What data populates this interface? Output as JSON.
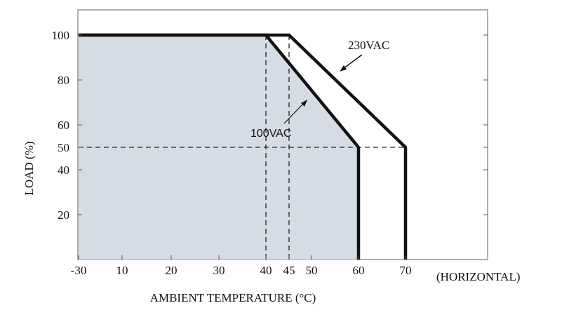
{
  "chart_data": {
    "type": "line",
    "title": "",
    "xlabel": "AMBIENT TEMPERATURE (°C)",
    "ylabel": "LOAD (%)",
    "xlim": [
      -30,
      88
    ],
    "ylim": [
      0,
      110
    ],
    "x_ticks": [
      -30,
      10,
      20,
      30,
      40,
      45,
      50,
      60,
      70
    ],
    "x_tick_labels": [
      "-30",
      "10",
      "20",
      "30",
      "40",
      "45",
      "50",
      "60",
      "70"
    ],
    "y_ticks": [
      20,
      40,
      50,
      60,
      80,
      100
    ],
    "y_tick_labels": [
      "20",
      "40",
      "50",
      "60",
      "80",
      "100"
    ],
    "axis_note": "(HORIZONTAL)",
    "grid": false,
    "series": [
      {
        "name": "100VAC",
        "points": [
          [
            -30,
            100
          ],
          [
            40,
            100
          ],
          [
            60,
            50
          ],
          [
            60,
            0
          ]
        ],
        "filled": true
      },
      {
        "name": "230VAC",
        "points": [
          [
            -30,
            100
          ],
          [
            45,
            100
          ],
          [
            70,
            50
          ],
          [
            70,
            0
          ]
        ],
        "filled": false
      }
    ],
    "reference_lines": {
      "vertical": [
        40,
        45
      ],
      "horizontal": [
        50
      ]
    },
    "colors": {
      "fill": "#d6dce3",
      "line": "#111111",
      "frame": "#777777",
      "dashed": "#222222"
    }
  }
}
